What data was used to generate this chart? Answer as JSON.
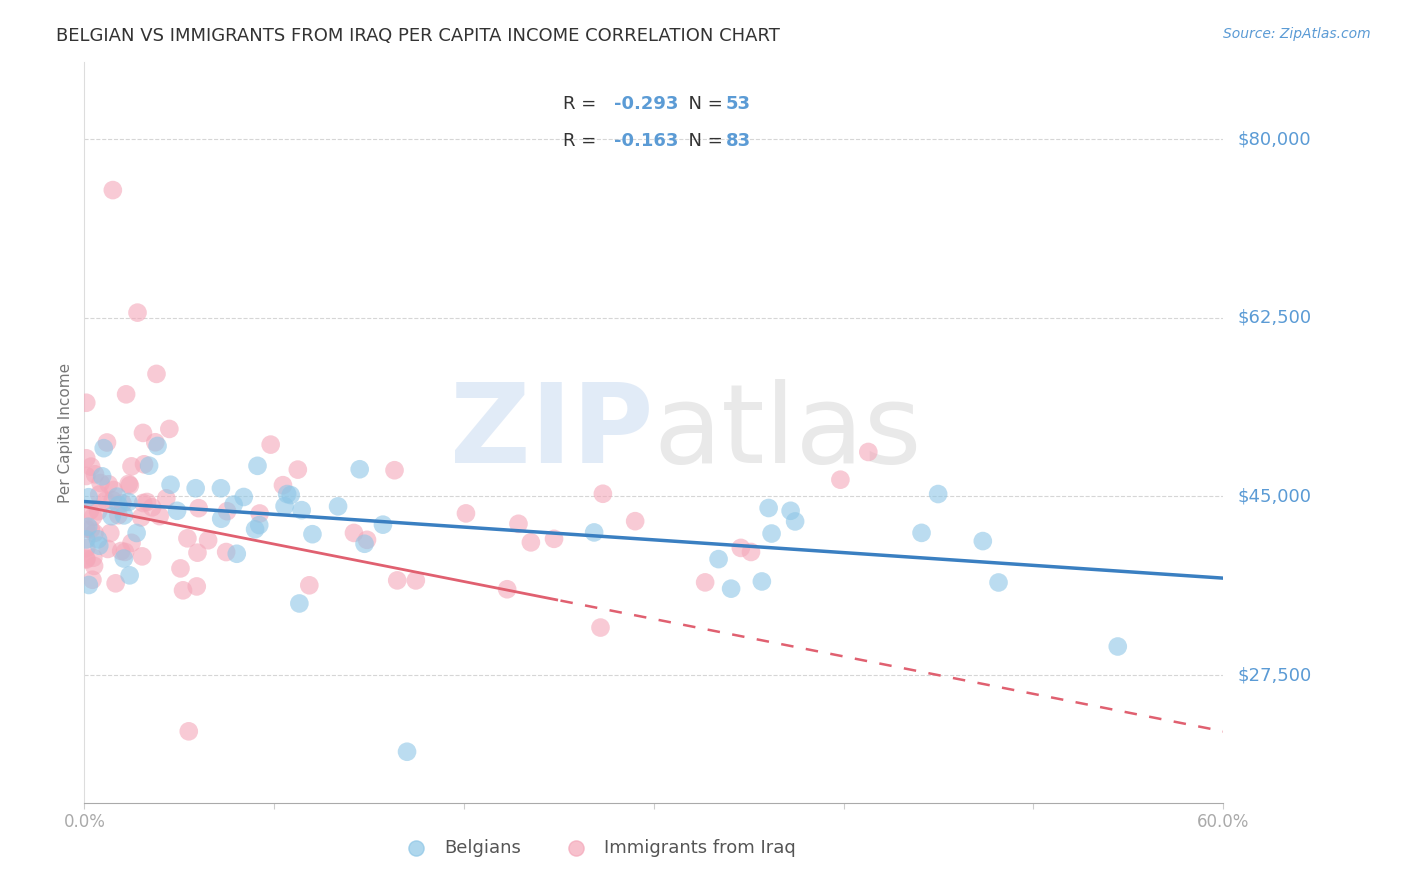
{
  "title": "BELGIAN VS IMMIGRANTS FROM IRAQ PER CAPITA INCOME CORRELATION CHART",
  "source": "Source: ZipAtlas.com",
  "ylabel": "Per Capita Income",
  "yticks": [
    27500,
    45000,
    62500,
    80000
  ],
  "ytick_labels": [
    "$27,500",
    "$45,000",
    "$62,500",
    "$80,000"
  ],
  "xlim": [
    0.0,
    0.6
  ],
  "ylim": [
    15000,
    87500
  ],
  "belgians_color": "#8ec6e6",
  "iraq_color": "#f4a7b9",
  "trendline_belgian_color": "#3a7fc1",
  "trendline_iraq_color": "#e06070",
  "background_color": "#ffffff",
  "grid_color": "#cccccc",
  "text_color": "#5b9bd5",
  "title_color": "#333333",
  "legend_text_color": "#5b9bd5",
  "legend_label_color": "#333333",
  "watermark_zip_color": "#c5d8f0",
  "watermark_atlas_color": "#c8c8c8",
  "source_color": "#5b9bd5",
  "ylabel_color": "#777777",
  "xtick_color": "#aaaaaa",
  "bottom_legend_color": "#555555"
}
